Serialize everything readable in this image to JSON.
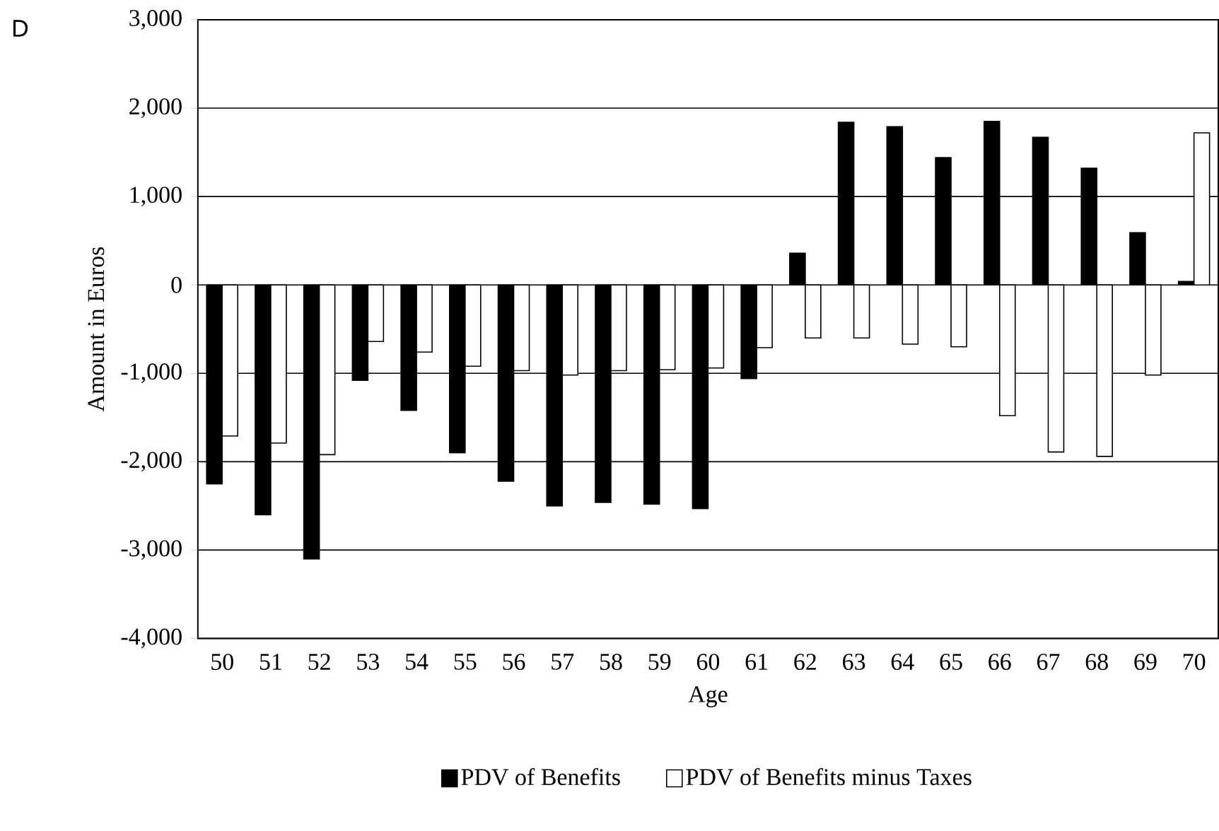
{
  "chart_data": {
    "type": "bar",
    "xlabel": "Age",
    "ylabel": "Amount in Euros",
    "annotations": [
      "D"
    ],
    "categories": [
      "50",
      "51",
      "52",
      "53",
      "54",
      "55",
      "56",
      "57",
      "58",
      "59",
      "60",
      "61",
      "62",
      "63",
      "64",
      "65",
      "66",
      "67",
      "68",
      "69",
      "70"
    ],
    "series": [
      {
        "name": "PDV of Benefits",
        "color": "#000000",
        "values": [
          -2250,
          -2600,
          -3100,
          -1080,
          -1420,
          -1900,
          -2220,
          -2500,
          -2460,
          -2480,
          -2530,
          -1060,
          360,
          1840,
          1790,
          1440,
          1850,
          1670,
          1320,
          590,
          40
        ]
      },
      {
        "name": "PDV of Benefits minus Taxes",
        "color": "#ffffff",
        "values": [
          -1710,
          -1790,
          -1920,
          -640,
          -760,
          -920,
          -970,
          -1020,
          -970,
          -960,
          -940,
          -710,
          -600,
          -600,
          -670,
          -700,
          -1480,
          -1890,
          -1940,
          -1020,
          1720
        ]
      }
    ],
    "ylim": [
      -4000,
      3000
    ],
    "yticks": [
      {
        "value": -4000,
        "label": "-4,000"
      },
      {
        "value": -3000,
        "label": "-3,000"
      },
      {
        "value": -2000,
        "label": "-2,000"
      },
      {
        "value": -1000,
        "label": "-1,000"
      },
      0,
      {
        "value": 1000,
        "label": "1,000"
      },
      {
        "value": 2000,
        "label": "2,000"
      },
      {
        "value": 3000,
        "label": "3,000"
      }
    ],
    "grid": "y",
    "legend": "bottom"
  }
}
